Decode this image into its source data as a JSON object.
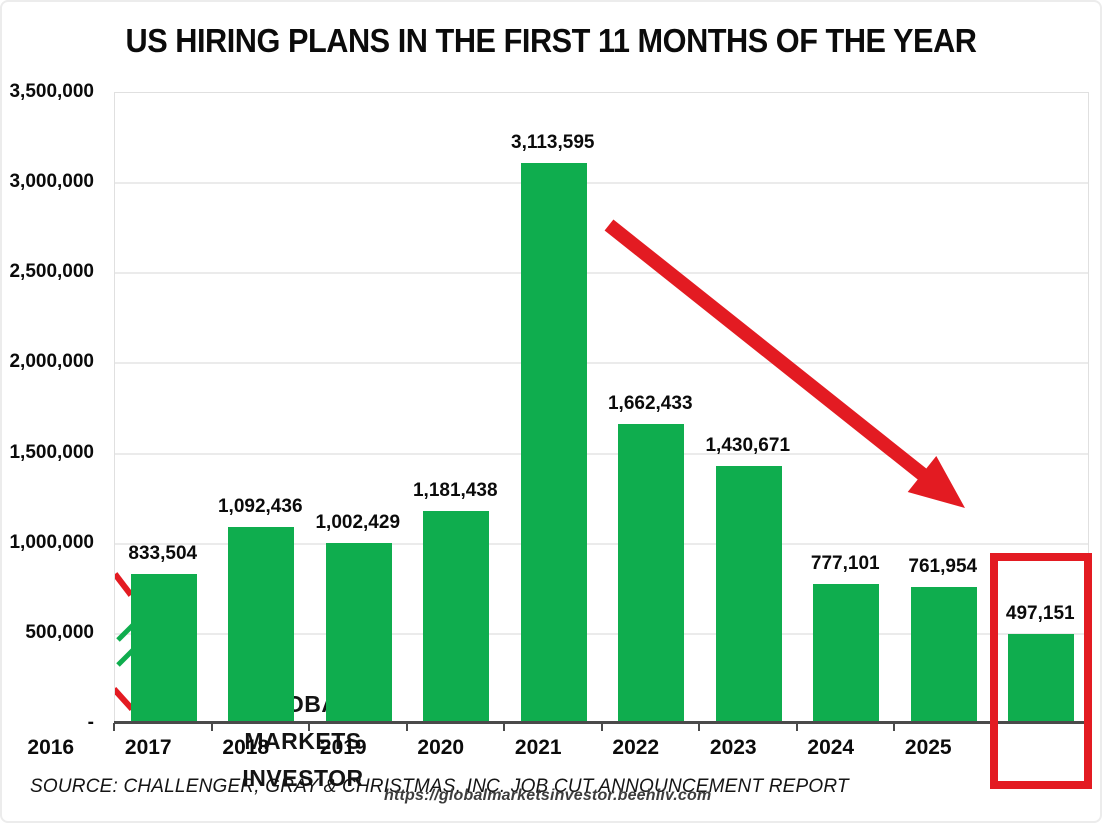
{
  "chart_data": {
    "type": "bar",
    "title": "US HIRING PLANS IN THE FIRST 11 MONTHS OF THE YEAR",
    "categories": [
      "2016",
      "2017",
      "2018",
      "2019",
      "2020",
      "2021",
      "2022",
      "2023",
      "2024",
      "2025"
    ],
    "values": [
      833504,
      1092436,
      1002429,
      1181438,
      3113595,
      1662433,
      1430671,
      777101,
      761954,
      497151
    ],
    "value_labels": [
      "833,504",
      "1,092,436",
      "1,002,429",
      "1,181,438",
      "3,113,595",
      "1,662,433",
      "1,430,671",
      "777,101",
      "761,954",
      "497,151"
    ],
    "xlabel": "",
    "ylabel": "",
    "ylim": [
      0,
      3500000
    ],
    "ytick_step": 500000,
    "yticks": [
      {
        "v": 3500000,
        "label": "3,500,000"
      },
      {
        "v": 3000000,
        "label": "3,000,000"
      },
      {
        "v": 2500000,
        "label": "2,500,000"
      },
      {
        "v": 2000000,
        "label": "2,000,000"
      },
      {
        "v": 1500000,
        "label": "1,500,000"
      },
      {
        "v": 1000000,
        "label": "1,000,000"
      },
      {
        "v": 500000,
        "label": "500,000"
      },
      {
        "v": 0,
        "label": "-"
      }
    ],
    "grid": true,
    "legend": false,
    "bar_color": "#0fad4e",
    "highlight": {
      "category": "2025",
      "style": "red-outline-box",
      "color": "#e31b22"
    },
    "annotation_arrow": {
      "style": "downward-trend",
      "color": "#e31b22"
    }
  },
  "source_note": "SOURCE: CHALLENGER, GRAY & CHRISTMAS, INC. JOB CUT ANNOUNCEMENT REPORT",
  "watermark": {
    "lines": [
      "GLOBAL",
      "MARKETS",
      "INVESTOR"
    ],
    "url": "https://globalmarketsinvestor.beehiiv.com"
  },
  "colors": {
    "bar_green": "#0fad4e",
    "accent_red": "#e31b22",
    "gridline": "#ebebeb",
    "axis_line": "#4a4a4a",
    "text": "#0b0b0b"
  }
}
